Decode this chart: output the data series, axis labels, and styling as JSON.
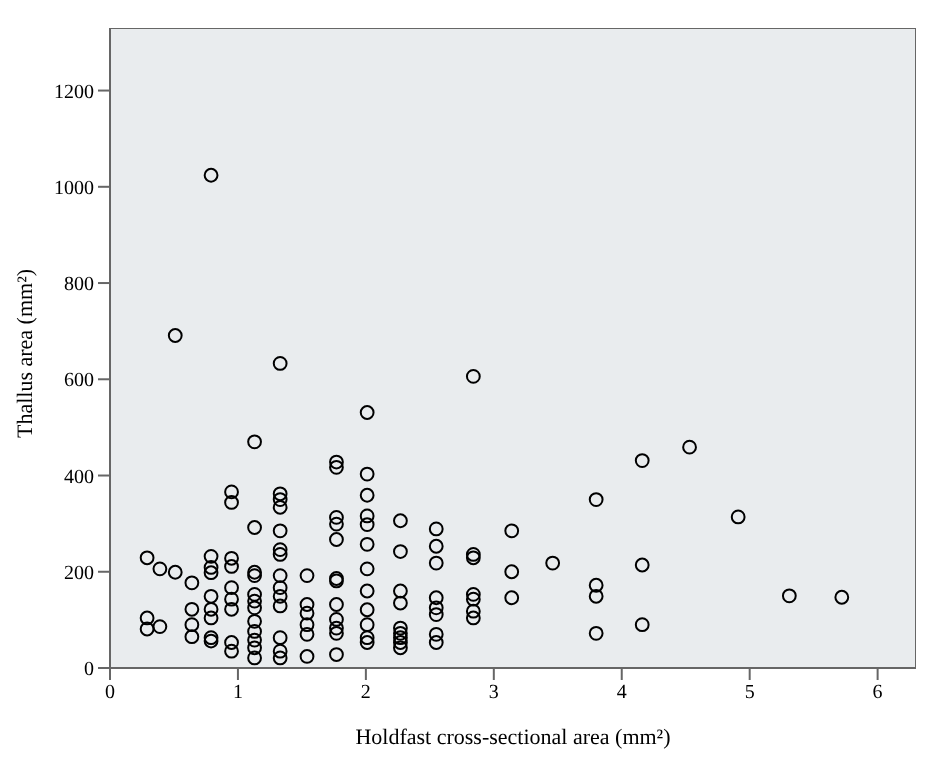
{
  "chart_data": {
    "type": "scatter",
    "xlabel": "Holdfast cross-sectional area (mm²)",
    "ylabel": "Thallus area (mm²)",
    "xlim": [
      0,
      6.3
    ],
    "xticks": [
      0,
      1,
      2,
      3,
      4,
      5,
      6
    ],
    "ylim": [
      0,
      1330
    ],
    "yticks": [
      0,
      200,
      400,
      600,
      800,
      1000,
      1200
    ],
    "grid": false,
    "legend": false,
    "marker": "circle",
    "series": [
      {
        "color": "#000000",
        "x": [
          0.29,
          0.29,
          0.29,
          0.39,
          0.39,
          0.51,
          0.51,
          0.64,
          0.64,
          0.64,
          0.64,
          0.79,
          0.79,
          0.79,
          0.79,
          0.79,
          0.79,
          0.79,
          0.79,
          0.79,
          0.95,
          0.95,
          0.95,
          0.95,
          0.95,
          0.95,
          0.95,
          0.95,
          0.95,
          1.13,
          1.13,
          1.13,
          1.13,
          1.13,
          1.13,
          1.13,
          1.13,
          1.13,
          1.13,
          1.13,
          1.13,
          1.33,
          1.33,
          1.33,
          1.33,
          1.33,
          1.33,
          1.33,
          1.33,
          1.33,
          1.33,
          1.33,
          1.33,
          1.33,
          1.33,
          1.54,
          1.54,
          1.54,
          1.54,
          1.54,
          1.54,
          1.77,
          1.77,
          1.77,
          1.77,
          1.77,
          1.77,
          1.77,
          1.77,
          1.77,
          1.77,
          1.77,
          1.77,
          2.01,
          2.01,
          2.01,
          2.01,
          2.01,
          2.01,
          2.01,
          2.01,
          2.01,
          2.01,
          2.01,
          2.01,
          2.27,
          2.27,
          2.27,
          2.27,
          2.27,
          2.27,
          2.27,
          2.27,
          2.27,
          2.55,
          2.55,
          2.55,
          2.55,
          2.55,
          2.55,
          2.55,
          2.55,
          2.84,
          2.84,
          2.84,
          2.84,
          2.84,
          2.84,
          2.84,
          3.14,
          3.14,
          3.14,
          3.46,
          3.8,
          3.8,
          3.8,
          3.8,
          4.16,
          4.16,
          4.16,
          4.53,
          4.91,
          5.31,
          5.72
        ],
        "values": [
          229,
          104,
          81,
          86,
          206,
          691,
          199,
          177,
          122,
          90,
          65,
          1024,
          232,
          209,
          198,
          149,
          122,
          104,
          63,
          56,
          366,
          344,
          228,
          211,
          167,
          143,
          122,
          53,
          35,
          470,
          292,
          199,
          192,
          153,
          139,
          125,
          97,
          76,
          58,
          42,
          21,
          633,
          362,
          350,
          334,
          285,
          246,
          236,
          192,
          167,
          149,
          129,
          63,
          35,
          21,
          192,
          132,
          114,
          90,
          70,
          24,
          428,
          417,
          313,
          299,
          267,
          186,
          181,
          132,
          101,
          83,
          72,
          28,
          531,
          403,
          359,
          316,
          298,
          257,
          206,
          160,
          121,
          90,
          63,
          53,
          306,
          242,
          160,
          135,
          83,
          72,
          63,
          53,
          42,
          289,
          253,
          218,
          146,
          125,
          111,
          70,
          53,
          606,
          236,
          229,
          153,
          143,
          118,
          104,
          285,
          200,
          146,
          218,
          350,
          172,
          149,
          72,
          431,
          214,
          90,
          459,
          314,
          150,
          147
        ]
      }
    ]
  }
}
